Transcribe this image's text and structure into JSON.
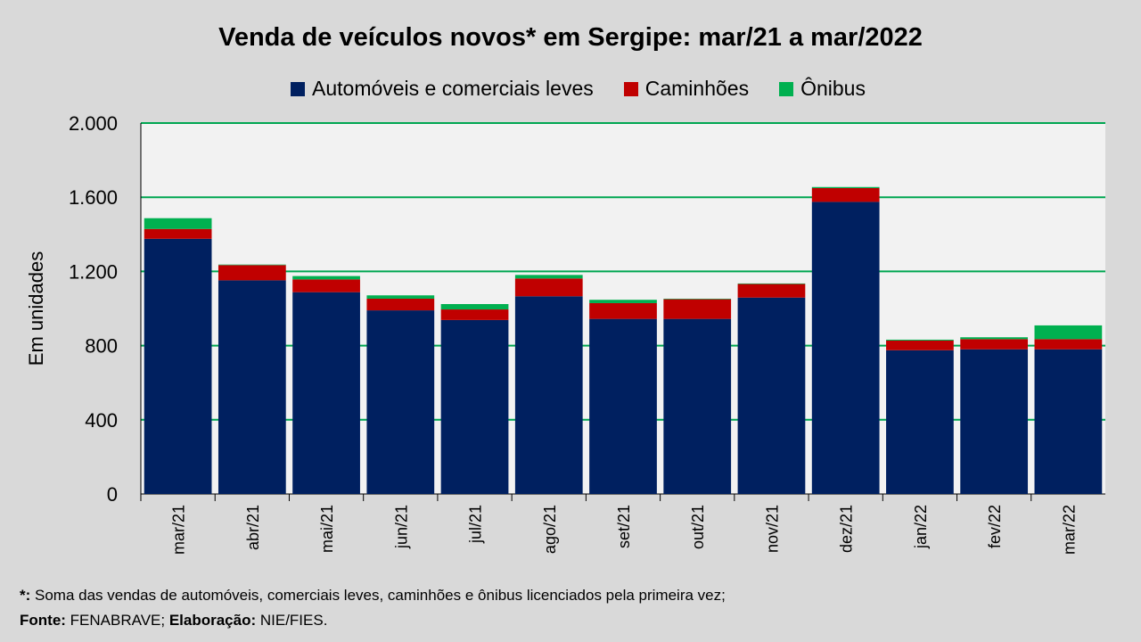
{
  "chart_data": {
    "type": "bar",
    "stacked": true,
    "title": "Venda de veículos novos* em Sergipe: mar/21 a mar/2022",
    "ylabel": "Em unidades",
    "xlabel": "",
    "ylim": [
      0,
      2000
    ],
    "yticks": [
      0,
      400,
      800,
      1200,
      1600,
      2000
    ],
    "ytick_labels": [
      "0",
      "400",
      "800",
      "1.200",
      "1.600",
      "2.000"
    ],
    "grid": true,
    "legend_position": "top",
    "categories": [
      "mar/21",
      "abr/21",
      "mai/21",
      "jun/21",
      "jul/21",
      "ago/21",
      "set/21",
      "out/21",
      "nov/21",
      "dez/21",
      "jan/22",
      "fev/22",
      "mar/22"
    ],
    "series": [
      {
        "name": "Automóveis e comerciais leves",
        "color": "#002060",
        "values": [
          1376,
          1152,
          1088,
          990,
          938,
          1066,
          944,
          944,
          1059,
          1575,
          775,
          780,
          780
        ]
      },
      {
        "name": "Caminhões",
        "color": "#c00000",
        "values": [
          53,
          82,
          69,
          63,
          57,
          96,
          85,
          106,
          73,
          74,
          52,
          55,
          55
        ]
      },
      {
        "name": "Ônibus",
        "color": "#00b050",
        "values": [
          58,
          3,
          18,
          18,
          29,
          19,
          18,
          3,
          3,
          6,
          5,
          10,
          74
        ]
      }
    ]
  },
  "footnote": {
    "star": "*:",
    "star_text": " Soma das vendas de automóveis, comerciais leves, caminhões e ônibus licenciados pela primeira vez;",
    "source_label": "Fonte:",
    "source_text": " FENABRAVE; ",
    "elab_label": "Elaboração:",
    "elab_text": " NIE/FIES."
  },
  "colors": {
    "background": "#d9d9d9",
    "plot_background": "#f2f2f2",
    "gridline": "#00a651"
  }
}
